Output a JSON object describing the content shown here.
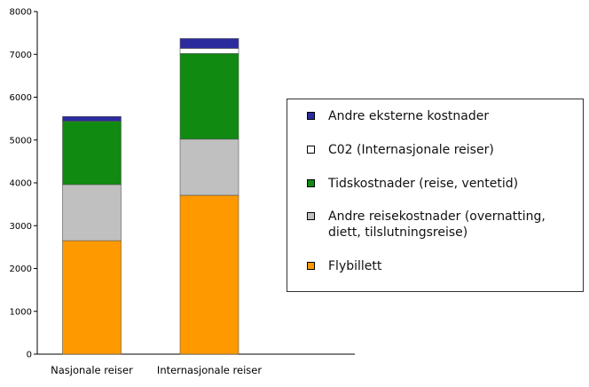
{
  "chart_data": {
    "type": "bar",
    "stacked": true,
    "categories": [
      "Nasjonale reiser",
      "Internasjonale reiser"
    ],
    "series": [
      {
        "name": "Flybillett",
        "color": "#ff9900",
        "values": [
          2650,
          3710
        ]
      },
      {
        "name": "Andre reisekostnader (overnatting, diett, tilslutningsreise)",
        "color": "#c0c0c0",
        "values": [
          1310,
          1310
        ]
      },
      {
        "name": "Tidskostnader (reise, ventetid)",
        "color": "#118a11",
        "values": [
          1480,
          2000
        ]
      },
      {
        "name": "C02 (Internasjonale reiser)",
        "color": "#ffffff",
        "values": [
          0,
          120
        ]
      },
      {
        "name": "Andre eksterne kostnader",
        "color": "#2b2b9e",
        "values": [
          110,
          230
        ]
      }
    ],
    "y_ticks": [
      "0",
      "1000",
      "2000",
      "3000",
      "4000",
      "5000",
      "6000",
      "7000",
      "8000"
    ],
    "ylim": [
      0,
      8000
    ],
    "grid": false,
    "legend_position": "right"
  }
}
